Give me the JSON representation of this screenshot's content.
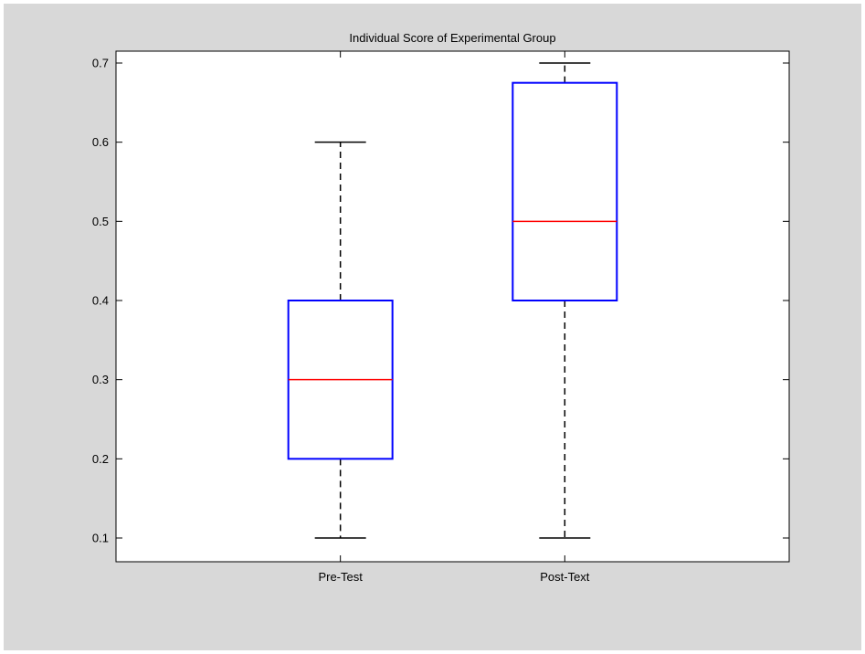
{
  "chart_data": {
    "type": "box",
    "title": "Individual Score of Experimental Group",
    "xlabel": "",
    "ylabel": "",
    "ylim": [
      0.07,
      0.715
    ],
    "yticks": [
      "0.1",
      "0.2",
      "0.3",
      "0.4",
      "0.5",
      "0.6",
      "0.7"
    ],
    "categories": [
      "Pre-Test",
      "Post-Text"
    ],
    "boxes": [
      {
        "category": "Pre-Test",
        "min": 0.1,
        "q1": 0.2,
        "median": 0.3,
        "q3": 0.4,
        "max": 0.6
      },
      {
        "category": "Post-Text",
        "min": 0.1,
        "q1": 0.4,
        "median": 0.5,
        "q3": 0.675,
        "max": 0.7
      }
    ],
    "grid": false,
    "colors": {
      "box": "#0000ff",
      "median": "#ff0000",
      "whisker": "#000000",
      "figure_bg": "#d8d8d8",
      "axes_bg": "#ffffff"
    }
  }
}
